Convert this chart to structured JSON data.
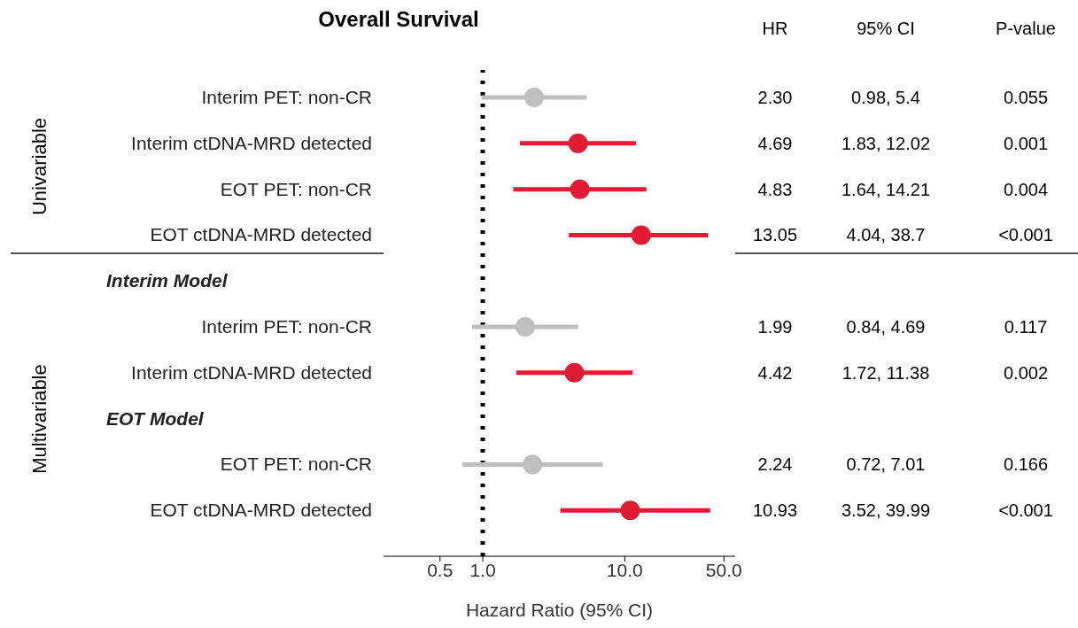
{
  "chart_data": {
    "type": "scatter",
    "orientation": "horizontal",
    "title": "Overall Survival",
    "xlabel": "Hazard Ratio (95% CI)",
    "categories": [
      "Interim PET: non-CR",
      "Interim ctDNA-MRD detected",
      "EOT PET: non-CR",
      "EOT ctDNA-MRD detected",
      null,
      "Interim PET: non-CR",
      "Interim ctDNA-MRD detected",
      null,
      "EOT PET: non-CR",
      "EOT ctDNA-MRD detected"
    ],
    "series": [
      {
        "color": "#bfbfbf",
        "values": [
          2.3,
          null,
          null,
          null,
          null,
          1.99,
          null,
          null,
          2.24,
          null
        ],
        "errors": [
          [
            0.98,
            5.4
          ],
          null,
          null,
          null,
          null,
          [
            0.84,
            4.69
          ],
          null,
          null,
          [
            0.72,
            7.01
          ],
          null
        ]
      },
      {
        "color": "#e01b33",
        "values": [
          null,
          4.69,
          4.83,
          13.05,
          null,
          null,
          4.42,
          null,
          null,
          10.93
        ],
        "errors": [
          null,
          [
            1.83,
            12.02
          ],
          [
            1.64,
            14.21
          ],
          [
            4.04,
            38.7
          ],
          null,
          null,
          [
            1.72,
            11.38
          ],
          null,
          null,
          [
            3.52,
            39.99
          ]
        ]
      }
    ],
    "log": "x",
    "xlim": [
      0.2,
      60
    ],
    "xticks": [
      0.5,
      {
        "value": 1,
        "label": "1.0"
      },
      {
        "value": 10,
        "label": "10.0"
      },
      {
        "value": 50,
        "label": "50.0"
      }
    ],
    "ref_lines": [
      {
        "axis": "x",
        "value": 1,
        "color": "#000000",
        "line_style": "dotted"
      }
    ],
    "marker": "circle",
    "grid": false,
    "legend": false,
    "annotations": [
      "Univariable",
      "Multivariable",
      "Interim Model",
      "EOT Model",
      "HR",
      "95% CI",
      "P-value",
      "2.30",
      "0.98, 5.4",
      "0.055",
      "4.69",
      "1.83, 12.02",
      "0.001",
      "4.83",
      "1.64, 14.21",
      "0.004",
      "13.05",
      "4.04, 38.7",
      "<0.001",
      "1.99",
      "0.84, 4.69",
      "0.117",
      "4.42",
      "1.72, 11.38",
      "0.002",
      "2.24",
      "0.72, 7.01",
      "0.166",
      "10.93",
      "3.52, 39.99",
      "<0.001"
    ]
  }
}
